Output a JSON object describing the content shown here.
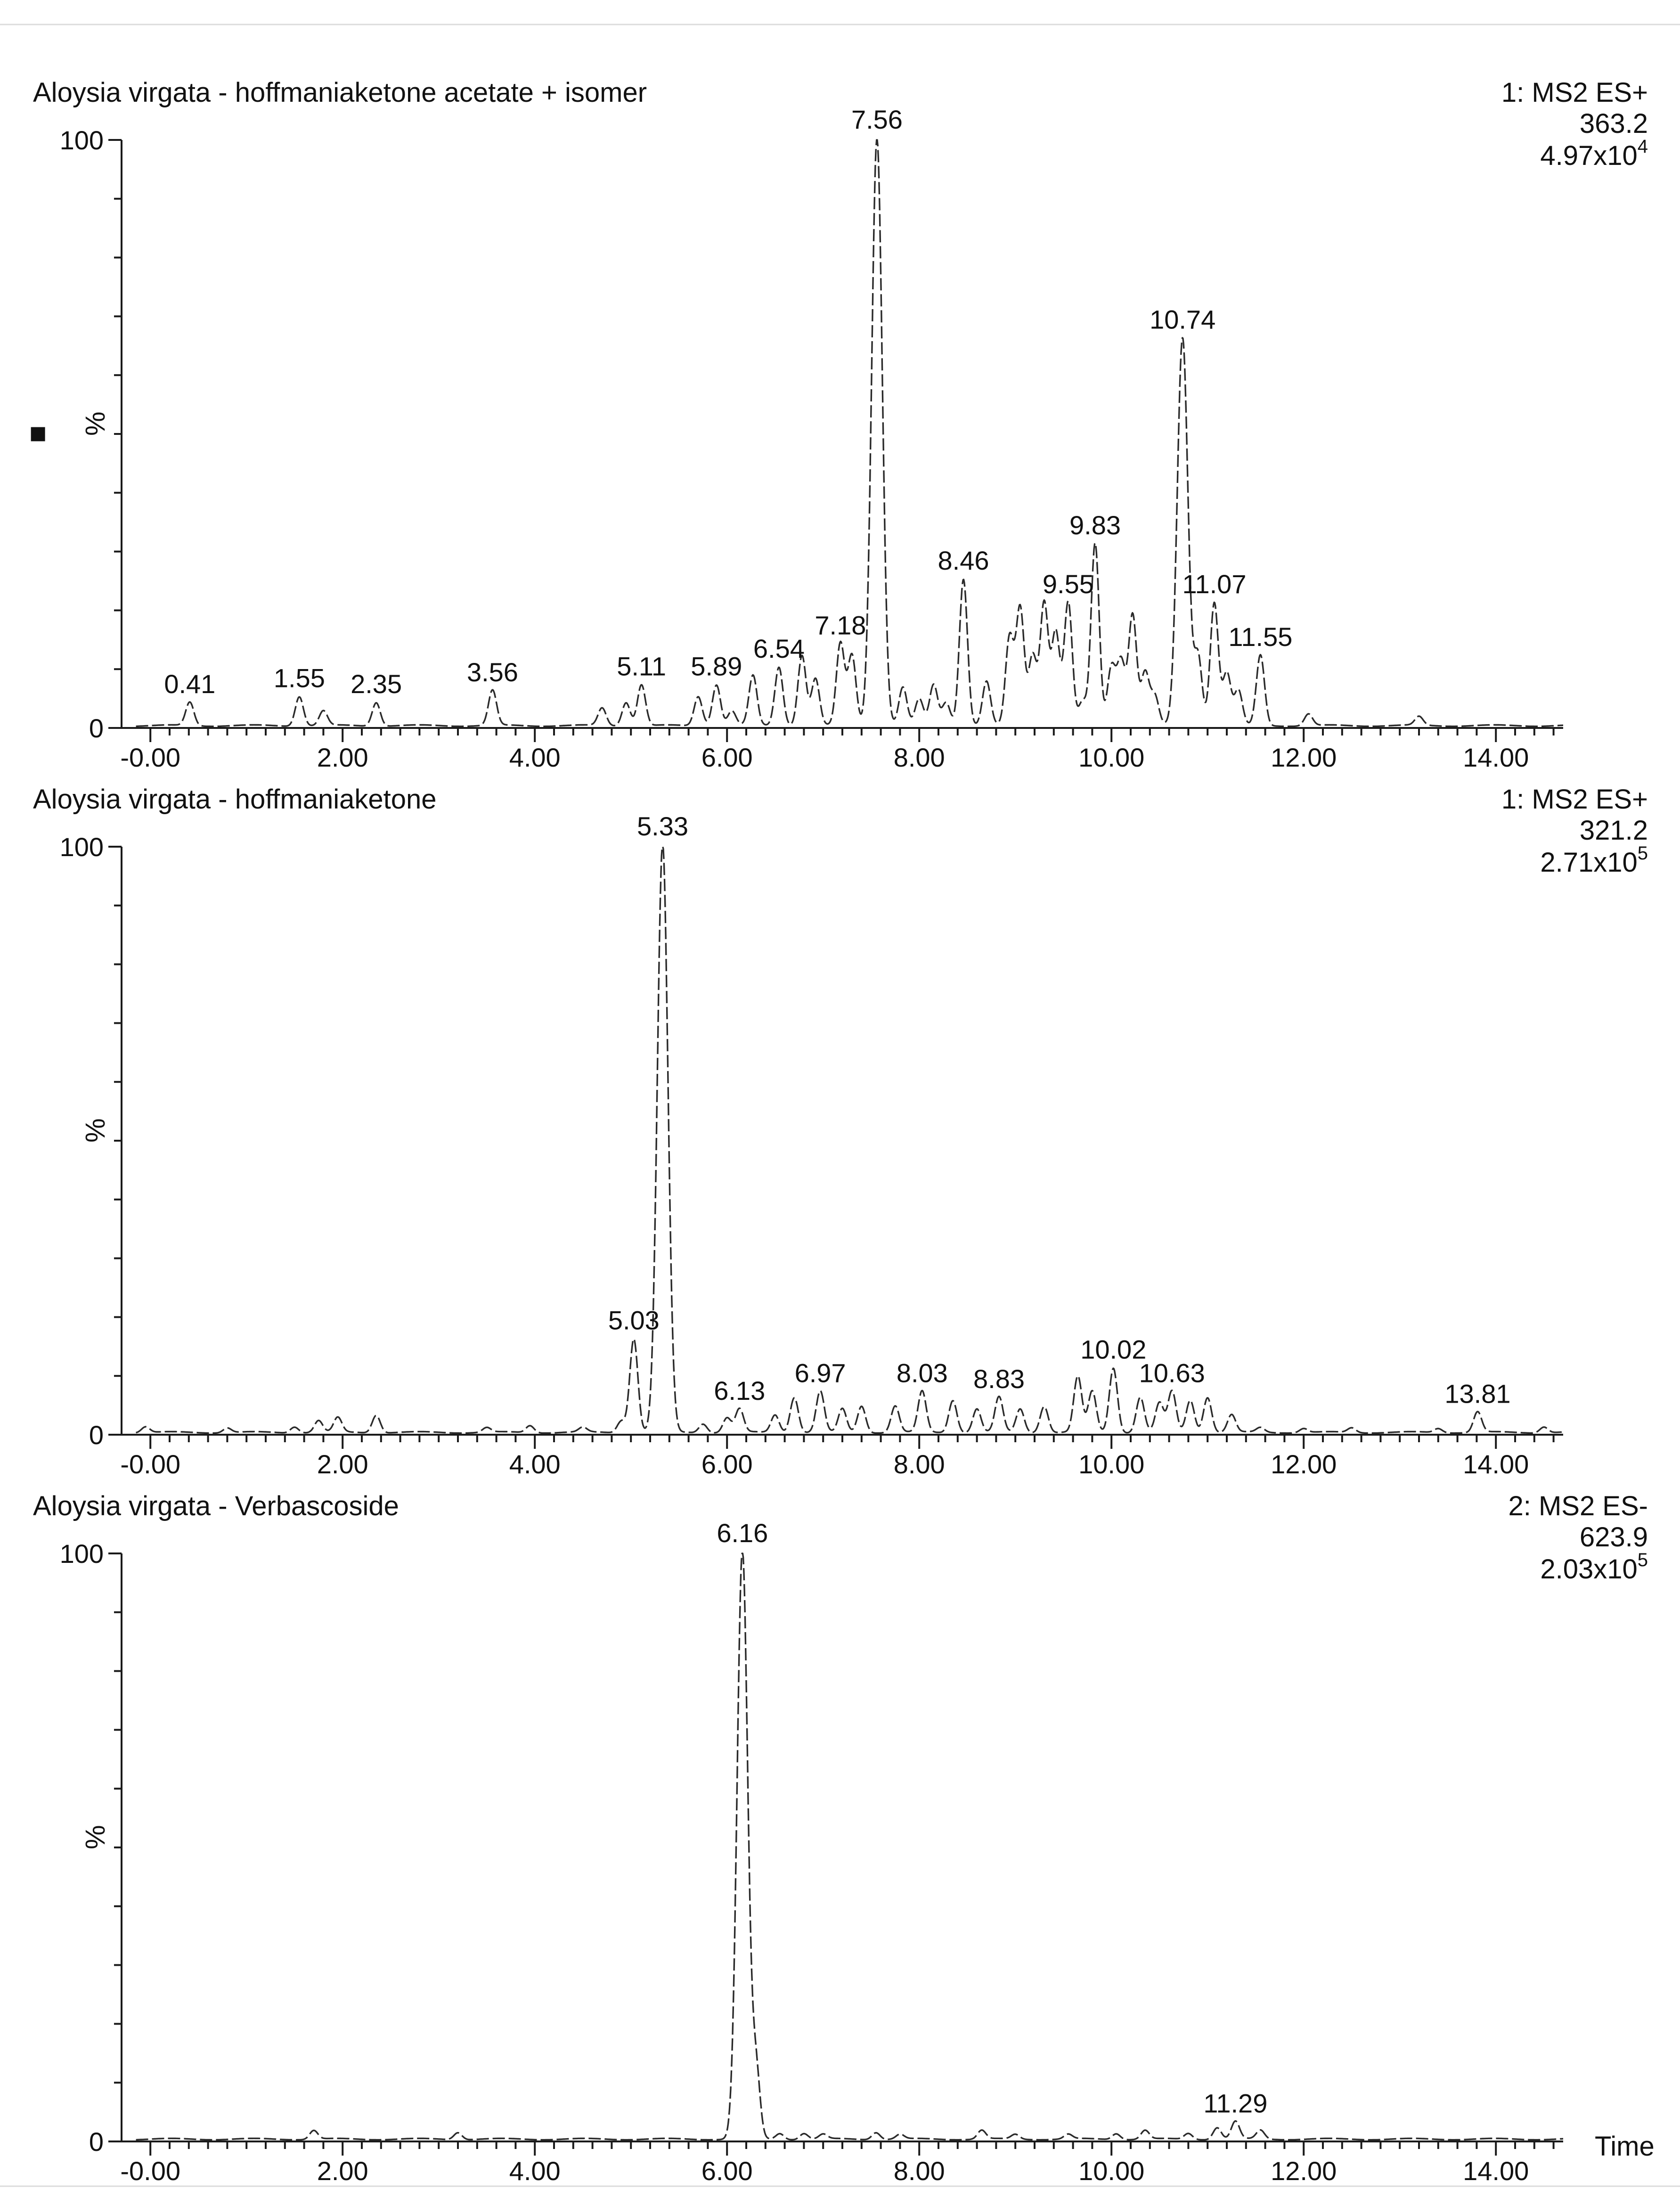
{
  "chart_data": [
    {
      "type": "line",
      "title": "Aloysia virgata - hoffmaniaketone acetate + isomer",
      "detector": "1: MS2 ES+",
      "mass": "363.2",
      "intensity": {
        "mantissa": "4.97x10",
        "exponent": "4"
      },
      "ylabel": "%",
      "xlabel": "",
      "xlim": [
        -0.3,
        14.7
      ],
      "ylim": [
        0,
        100
      ],
      "x_ticks": [
        "-0.00",
        "2.00",
        "4.00",
        "6.00",
        "8.00",
        "10.00",
        "12.00",
        "14.00"
      ],
      "y_ticks": [
        "0",
        "100"
      ],
      "peaks": [
        {
          "x": 0.41,
          "y": 4,
          "label": "0.41"
        },
        {
          "x": 1.55,
          "y": 5,
          "label": "1.55"
        },
        {
          "x": 1.8,
          "y": 2.5
        },
        {
          "x": 2.35,
          "y": 4,
          "label": "2.35"
        },
        {
          "x": 3.56,
          "y": 6,
          "label": "3.56"
        },
        {
          "x": 4.7,
          "y": 3
        },
        {
          "x": 4.95,
          "y": 4
        },
        {
          "x": 5.11,
          "y": 7,
          "label": "5.11"
        },
        {
          "x": 5.7,
          "y": 5
        },
        {
          "x": 5.89,
          "y": 7,
          "label": "5.89"
        },
        {
          "x": 6.05,
          "y": 2.5
        },
        {
          "x": 6.27,
          "y": 8.5
        },
        {
          "x": 6.54,
          "y": 10,
          "label": "6.54"
        },
        {
          "x": 6.78,
          "y": 12
        },
        {
          "x": 6.92,
          "y": 8
        },
        {
          "x": 7.18,
          "y": 14,
          "label": "7.18"
        },
        {
          "x": 7.3,
          "y": 12
        },
        {
          "x": 7.56,
          "y": 100,
          "label": "7.56"
        },
        {
          "x": 7.83,
          "y": 6.5
        },
        {
          "x": 8.0,
          "y": 4.5
        },
        {
          "x": 8.15,
          "y": 7
        },
        {
          "x": 8.28,
          "y": 4
        },
        {
          "x": 8.46,
          "y": 25,
          "label": "8.46"
        },
        {
          "x": 8.7,
          "y": 7.5
        },
        {
          "x": 8.94,
          "y": 15
        },
        {
          "x": 9.05,
          "y": 20
        },
        {
          "x": 9.18,
          "y": 12
        },
        {
          "x": 9.3,
          "y": 21
        },
        {
          "x": 9.42,
          "y": 16
        },
        {
          "x": 9.55,
          "y": 21,
          "label": "9.55"
        },
        {
          "x": 9.7,
          "y": 4
        },
        {
          "x": 9.83,
          "y": 31,
          "label": "9.83"
        },
        {
          "x": 10.0,
          "y": 10
        },
        {
          "x": 10.1,
          "y": 11
        },
        {
          "x": 10.22,
          "y": 19
        },
        {
          "x": 10.35,
          "y": 9
        },
        {
          "x": 10.45,
          "y": 5
        },
        {
          "x": 10.74,
          "y": 66,
          "label": "10.74"
        },
        {
          "x": 10.9,
          "y": 12
        },
        {
          "x": 11.07,
          "y": 21,
          "label": "11.07"
        },
        {
          "x": 11.2,
          "y": 9
        },
        {
          "x": 11.32,
          "y": 6
        },
        {
          "x": 11.55,
          "y": 12,
          "label": "11.55"
        },
        {
          "x": 12.05,
          "y": 2
        },
        {
          "x": 13.2,
          "y": 1.5
        }
      ]
    },
    {
      "type": "line",
      "title": "Aloysia virgata - hoffmaniaketone",
      "detector": "1: MS2 ES+",
      "mass": "321.2",
      "intensity": {
        "mantissa": "2.71x10",
        "exponent": "5"
      },
      "ylabel": "%",
      "xlabel": "",
      "xlim": [
        -0.3,
        14.7
      ],
      "ylim": [
        0,
        100
      ],
      "x_ticks": [
        "-0.00",
        "2.00",
        "4.00",
        "6.00",
        "8.00",
        "10.00",
        "12.00",
        "14.00"
      ],
      "y_ticks": [
        "0",
        "100"
      ],
      "peaks": [
        {
          "x": -0.05,
          "y": 1
        },
        {
          "x": 0.8,
          "y": 0.8
        },
        {
          "x": 1.5,
          "y": 1
        },
        {
          "x": 1.75,
          "y": 2
        },
        {
          "x": 1.95,
          "y": 2.5
        },
        {
          "x": 2.35,
          "y": 3
        },
        {
          "x": 3.5,
          "y": 0.8
        },
        {
          "x": 3.95,
          "y": 1.2
        },
        {
          "x": 4.5,
          "y": 0.8
        },
        {
          "x": 4.9,
          "y": 2
        },
        {
          "x": 5.03,
          "y": 16,
          "label": "5.03"
        },
        {
          "x": 5.33,
          "y": 100,
          "label": "5.33"
        },
        {
          "x": 5.75,
          "y": 1.5
        },
        {
          "x": 6.0,
          "y": 2.5
        },
        {
          "x": 6.13,
          "y": 4,
          "label": "6.13"
        },
        {
          "x": 6.5,
          "y": 3
        },
        {
          "x": 6.7,
          "y": 6
        },
        {
          "x": 6.97,
          "y": 7,
          "label": "6.97"
        },
        {
          "x": 7.2,
          "y": 4
        },
        {
          "x": 7.4,
          "y": 4.5
        },
        {
          "x": 7.75,
          "y": 4.5
        },
        {
          "x": 8.03,
          "y": 7,
          "label": "8.03"
        },
        {
          "x": 8.35,
          "y": 5.5
        },
        {
          "x": 8.6,
          "y": 4
        },
        {
          "x": 8.83,
          "y": 6,
          "label": "8.83"
        },
        {
          "x": 9.05,
          "y": 4
        },
        {
          "x": 9.3,
          "y": 4.5
        },
        {
          "x": 9.65,
          "y": 9.5
        },
        {
          "x": 9.8,
          "y": 7
        },
        {
          "x": 10.02,
          "y": 11,
          "label": "10.02"
        },
        {
          "x": 10.3,
          "y": 6
        },
        {
          "x": 10.5,
          "y": 5
        },
        {
          "x": 10.63,
          "y": 7,
          "label": "10.63"
        },
        {
          "x": 10.82,
          "y": 5.5
        },
        {
          "x": 11.0,
          "y": 6
        },
        {
          "x": 11.25,
          "y": 3
        },
        {
          "x": 11.55,
          "y": 0.8
        },
        {
          "x": 12.0,
          "y": 0.7
        },
        {
          "x": 12.5,
          "y": 0.8
        },
        {
          "x": 13.4,
          "y": 0.7
        },
        {
          "x": 13.81,
          "y": 3.5,
          "label": "13.81"
        },
        {
          "x": 14.5,
          "y": 1
        }
      ]
    },
    {
      "type": "line",
      "title": "Aloysia virgata - Verbascoside",
      "detector": "2: MS2 ES-",
      "mass": "623.9",
      "intensity": {
        "mantissa": "2.03x10",
        "exponent": "5"
      },
      "ylabel": "%",
      "xlabel": "Time",
      "xlim": [
        -0.3,
        14.7
      ],
      "ylim": [
        0,
        100
      ],
      "x_ticks": [
        "-0.00",
        "2.00",
        "4.00",
        "6.00",
        "8.00",
        "10.00",
        "12.00",
        "14.00"
      ],
      "y_ticks": [
        "0",
        "100"
      ],
      "peaks": [
        {
          "x": 1.7,
          "y": 1.5
        },
        {
          "x": 3.2,
          "y": 1.2
        },
        {
          "x": 6.16,
          "y": 100,
          "label": "6.16"
        },
        {
          "x": 6.3,
          "y": 12
        },
        {
          "x": 6.55,
          "y": 1
        },
        {
          "x": 6.8,
          "y": 1
        },
        {
          "x": 7.0,
          "y": 0.8
        },
        {
          "x": 7.55,
          "y": 1.2
        },
        {
          "x": 7.8,
          "y": 0.8
        },
        {
          "x": 8.65,
          "y": 1.5
        },
        {
          "x": 9.0,
          "y": 0.8
        },
        {
          "x": 9.55,
          "y": 0.8
        },
        {
          "x": 10.05,
          "y": 1
        },
        {
          "x": 10.35,
          "y": 1.5
        },
        {
          "x": 10.8,
          "y": 1
        },
        {
          "x": 11.1,
          "y": 2
        },
        {
          "x": 11.29,
          "y": 3,
          "label": "11.29"
        },
        {
          "x": 11.55,
          "y": 1.5
        }
      ]
    }
  ],
  "side_marker": {
    "glyph": "■"
  }
}
